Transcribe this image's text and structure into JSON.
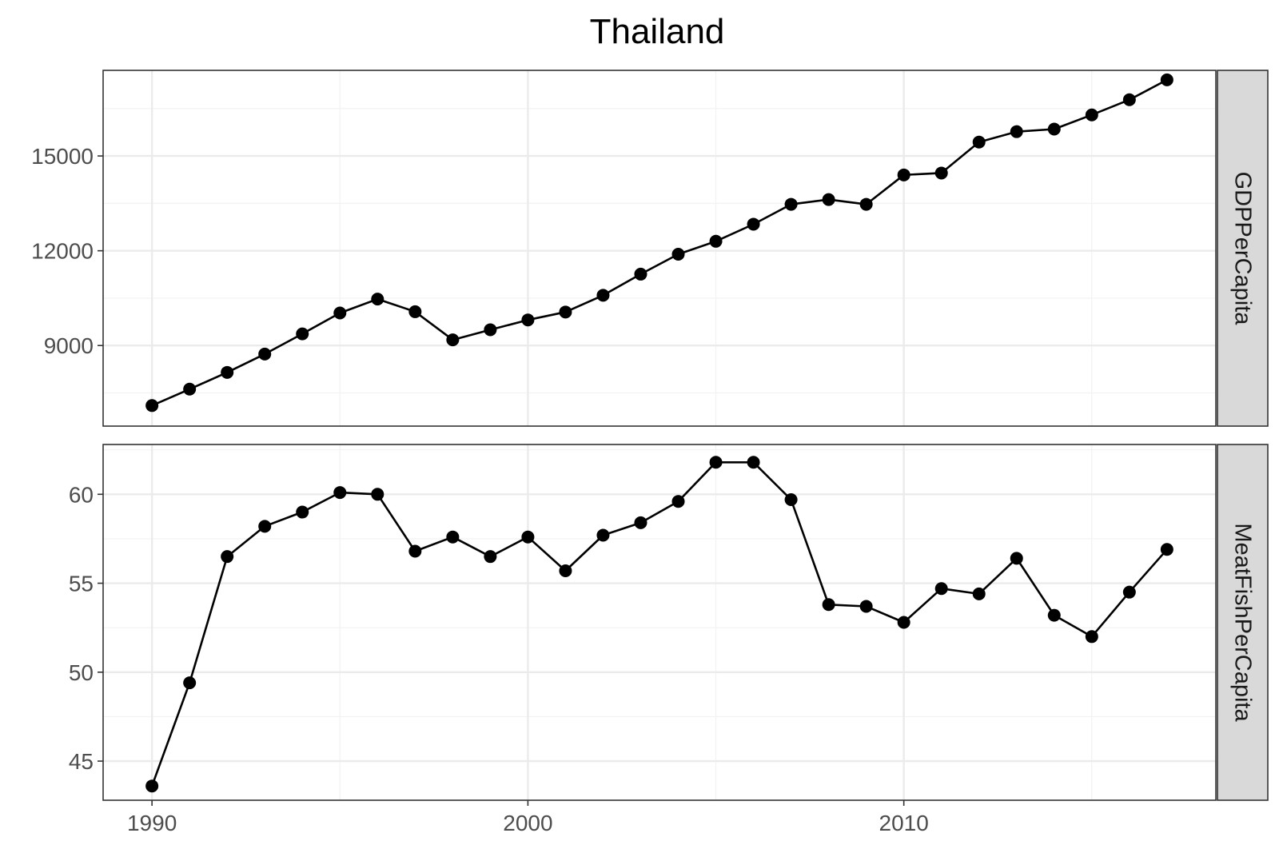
{
  "chart_data": {
    "type": "line",
    "title": "Thailand",
    "xlabel": "",
    "ylabel": "",
    "grid": true,
    "x_ticks": [
      1990,
      2000,
      2010
    ],
    "xlim": [
      1988.7,
      2018.3
    ],
    "x": [
      1990,
      1991,
      1992,
      1993,
      1994,
      1995,
      1996,
      1997,
      1998,
      1999,
      2000,
      2001,
      2002,
      2003,
      2004,
      2005,
      2006,
      2007,
      2008,
      2009,
      2010,
      2011,
      2012,
      2013,
      2014,
      2015,
      2016,
      2017
    ],
    "facets": [
      {
        "strip": "GDPPerCapita",
        "ylim": [
          6450,
          17710
        ],
        "y_ticks": [
          9000,
          12000,
          15000
        ],
        "y_tick_labels": [
          "9000",
          "12000",
          "15000"
        ],
        "values": [
          7100,
          7620,
          8150,
          8730,
          9370,
          10030,
          10470,
          10070,
          9180,
          9500,
          9810,
          10060,
          10590,
          11260,
          11890,
          12300,
          12840,
          13470,
          13620,
          13470,
          14400,
          14460,
          15440,
          15770,
          15850,
          16300,
          16780,
          17410
        ]
      },
      {
        "strip": "MeatFishPerCapita",
        "ylim": [
          42.8,
          62.8
        ],
        "y_ticks": [
          45,
          50,
          55,
          60
        ],
        "y_tick_labels": [
          "45",
          "50",
          "55",
          "60"
        ],
        "values": [
          43.6,
          49.4,
          56.5,
          58.2,
          59.0,
          60.1,
          60.0,
          56.8,
          57.6,
          56.5,
          57.6,
          55.7,
          57.7,
          58.4,
          59.6,
          61.8,
          61.8,
          59.7,
          53.8,
          53.7,
          52.8,
          54.7,
          54.4,
          56.4,
          53.2,
          52.0,
          54.5,
          56.9
        ]
      }
    ]
  }
}
